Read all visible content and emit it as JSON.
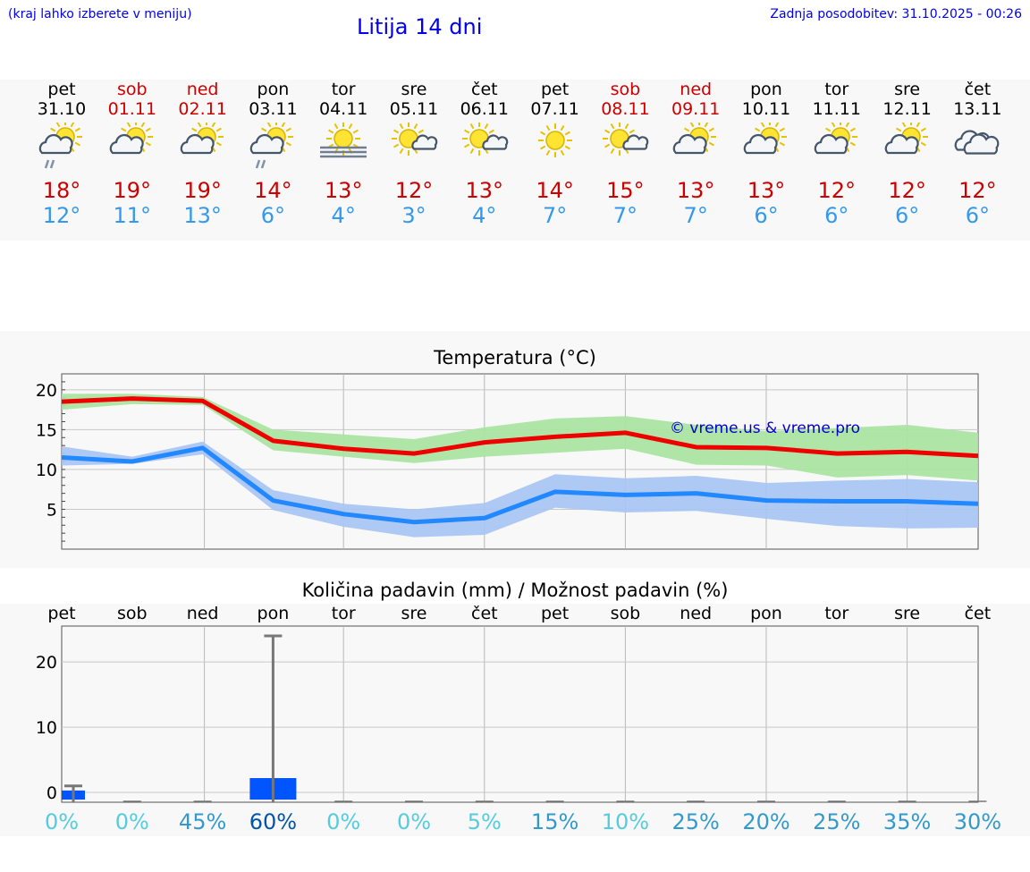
{
  "header": {
    "hint": "(kraj lahko izberete v meniju)",
    "title": "Litija 14 dni",
    "updated": "Zadnja posodobitev: 31.10.2025 - 00:26"
  },
  "days": [
    {
      "name": "pet",
      "date": "31.10",
      "weekend": false,
      "icon": "sun-cloud-rain-icon",
      "tmax": "18°",
      "tmin": "12°"
    },
    {
      "name": "sob",
      "date": "01.11",
      "weekend": true,
      "icon": "sun-cloud-icon",
      "tmax": "19°",
      "tmin": "11°"
    },
    {
      "name": "ned",
      "date": "02.11",
      "weekend": true,
      "icon": "sun-cloud-icon",
      "tmax": "19°",
      "tmin": "13°"
    },
    {
      "name": "pon",
      "date": "03.11",
      "weekend": false,
      "icon": "sun-cloud-rain-icon",
      "tmax": "14°",
      "tmin": "6°"
    },
    {
      "name": "tor",
      "date": "04.11",
      "weekend": false,
      "icon": "sun-fog-icon",
      "tmax": "13°",
      "tmin": "4°"
    },
    {
      "name": "sre",
      "date": "05.11",
      "weekend": false,
      "icon": "sun-small-cloud-icon",
      "tmax": "12°",
      "tmin": "3°"
    },
    {
      "name": "čet",
      "date": "06.11",
      "weekend": false,
      "icon": "sun-small-cloud-icon",
      "tmax": "13°",
      "tmin": "4°"
    },
    {
      "name": "pet",
      "date": "07.11",
      "weekend": false,
      "icon": "sun-icon",
      "tmax": "14°",
      "tmin": "7°"
    },
    {
      "name": "sob",
      "date": "08.11",
      "weekend": true,
      "icon": "sun-small-cloud-icon",
      "tmax": "15°",
      "tmin": "7°"
    },
    {
      "name": "ned",
      "date": "09.11",
      "weekend": true,
      "icon": "sun-cloud-icon",
      "tmax": "13°",
      "tmin": "7°"
    },
    {
      "name": "pon",
      "date": "10.11",
      "weekend": false,
      "icon": "sun-cloud-icon",
      "tmax": "13°",
      "tmin": "6°"
    },
    {
      "name": "tor",
      "date": "11.11",
      "weekend": false,
      "icon": "sun-cloud-icon",
      "tmax": "12°",
      "tmin": "6°"
    },
    {
      "name": "sre",
      "date": "12.11",
      "weekend": false,
      "icon": "sun-cloud-icon",
      "tmax": "12°",
      "tmin": "6°"
    },
    {
      "name": "čet",
      "date": "13.11",
      "weekend": false,
      "icon": "cloud-icon",
      "tmax": "12°",
      "tmin": "6°"
    }
  ],
  "colors": {
    "max_line": "#ee0000",
    "max_band": "#a8e4a0",
    "min_line": "#2288ff",
    "min_band": "#a8c4f4",
    "bar": "#0055ff",
    "error": "#777777",
    "pct_light": "#55ccdd",
    "pct_mid": "#3399cc",
    "pct_dark": "#0055aa"
  },
  "chart_data": [
    {
      "type": "line",
      "title": "Temperatura (°C)",
      "watermark": "© vreme.us & vreme.pro",
      "ylim": [
        0,
        22
      ],
      "yticks": [
        5,
        10,
        15,
        20
      ],
      "series": [
        {
          "name": "max",
          "values": [
            18.5,
            18.9,
            18.6,
            13.6,
            12.6,
            12.0,
            13.4,
            14.1,
            14.6,
            12.8,
            12.7,
            12.0,
            12.2,
            11.7
          ],
          "band_low": [
            17.5,
            18.2,
            18.1,
            12.4,
            11.6,
            10.8,
            11.6,
            12.1,
            12.6,
            10.6,
            10.5,
            9.0,
            9.3,
            8.6
          ],
          "band_high": [
            19.5,
            19.5,
            19.1,
            15.0,
            14.4,
            13.8,
            15.3,
            16.4,
            16.7,
            15.6,
            14.8,
            15.2,
            15.6,
            14.6
          ]
        },
        {
          "name": "min",
          "values": [
            11.5,
            11.0,
            12.7,
            6.1,
            4.4,
            3.4,
            3.9,
            7.2,
            6.8,
            7.0,
            6.1,
            6.0,
            6.0,
            5.7
          ],
          "band_low": [
            10.5,
            10.7,
            11.9,
            4.9,
            2.8,
            1.5,
            1.8,
            5.2,
            4.6,
            4.8,
            3.8,
            2.9,
            2.6,
            2.7
          ],
          "band_high": [
            12.9,
            11.6,
            13.5,
            7.4,
            5.7,
            5.0,
            5.8,
            9.4,
            8.9,
            9.2,
            8.3,
            8.6,
            8.8,
            8.4
          ]
        }
      ]
    },
    {
      "type": "bar",
      "title": "Količina padavin (mm) / Možnost padavin (%)",
      "categories": [
        "pet",
        "sob",
        "ned",
        "pon",
        "tor",
        "sre",
        "čet",
        "pet",
        "sob",
        "ned",
        "pon",
        "tor",
        "sre",
        "čet"
      ],
      "values": [
        0.3,
        0,
        0,
        2.2,
        0,
        0,
        0,
        0,
        0,
        0,
        0,
        0,
        0,
        0
      ],
      "error_high": [
        1,
        0,
        0,
        24,
        0,
        0,
        0,
        0,
        0,
        0,
        0,
        0,
        0,
        0
      ],
      "ylim": [
        -1.5,
        25.5
      ],
      "yticks": [
        0,
        10,
        20
      ],
      "probability": [
        "0%",
        "0%",
        "45%",
        "60%",
        "0%",
        "0%",
        "5%",
        "15%",
        "10%",
        "25%",
        "20%",
        "25%",
        "35%",
        "30%"
      ]
    }
  ]
}
